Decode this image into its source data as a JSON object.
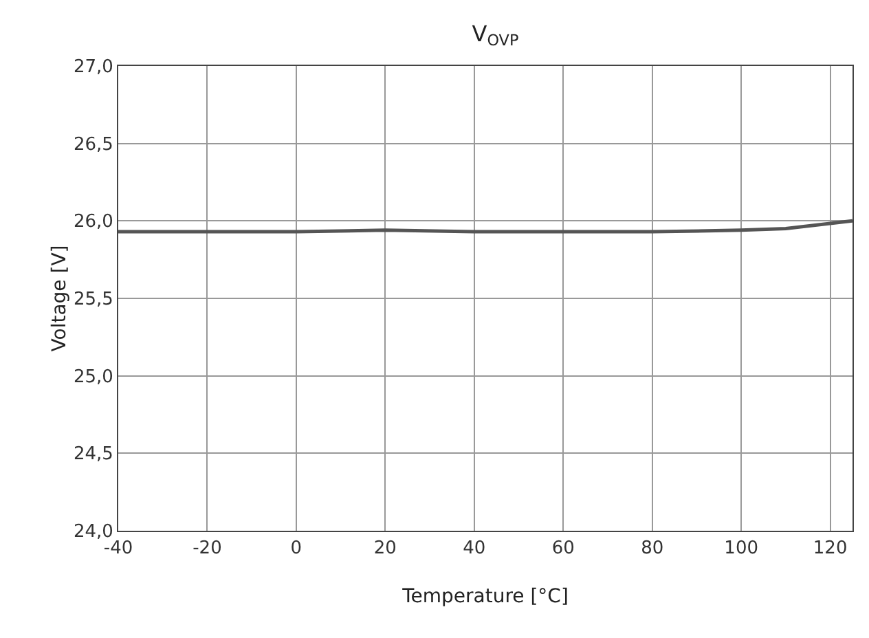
{
  "chart_data": {
    "type": "line",
    "title": "V$_{OVP}$",
    "xlabel": "Temperature [°C]",
    "ylabel": "Voltage [V]",
    "x": [
      -40,
      -20,
      0,
      20,
      40,
      60,
      80,
      100,
      110,
      125
    ],
    "series": [
      {
        "color": "#555555",
        "values": [
          25.93,
          25.93,
          25.93,
          25.94,
          25.93,
          25.93,
          25.93,
          25.94,
          25.95,
          26.0
        ]
      }
    ],
    "xlim": [
      -40,
      125
    ],
    "xticks": [
      -40,
      -20,
      0,
      20,
      40,
      60,
      80,
      100,
      120
    ],
    "ylim": [
      24,
      27
    ],
    "yticks": [
      {
        "value": 24,
        "label": "24,0"
      },
      {
        "value": 24.5,
        "label": "24,5"
      },
      {
        "value": 25,
        "label": "25,0"
      },
      {
        "value": 25.5,
        "label": "25,5"
      },
      {
        "value": 26,
        "label": "26,0"
      },
      {
        "value": 26.5,
        "label": "26,5"
      },
      {
        "value": 27,
        "label": "27,0"
      }
    ],
    "grid": true,
    "marker": "none",
    "line_style": "solid"
  }
}
